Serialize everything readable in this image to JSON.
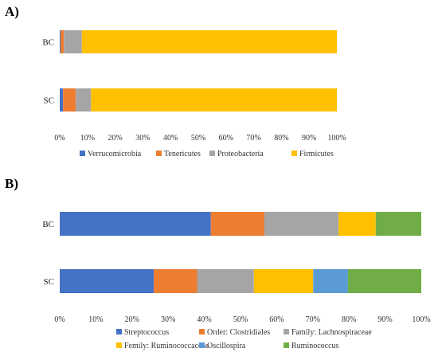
{
  "chart_data": [
    {
      "type": "bar",
      "orientation": "horizontal",
      "stacked": "percent",
      "panel_label": "A)",
      "categories": [
        "BC",
        "SC"
      ],
      "series": [
        {
          "name": "Verrucomicrobia",
          "color": "#4472C4",
          "values": [
            0.3,
            1.2
          ]
        },
        {
          "name": "Tenericutes",
          "color": "#ED7D31",
          "values": [
            1.2,
            4.6
          ]
        },
        {
          "name": "Proteobacteria",
          "color": "#A5A5A5",
          "values": [
            6.5,
            5.5
          ]
        },
        {
          "name": "Firmicutes",
          "color": "#FFC000",
          "values": [
            92.0,
            88.7
          ]
        }
      ],
      "xlim": [
        0,
        100
      ],
      "xticks": [
        "0%",
        "10%",
        "20%",
        "30%",
        "40%",
        "50%",
        "60%",
        "70%",
        "80%",
        "90%",
        "100%"
      ],
      "legend_position": "bottom",
      "grid": false
    },
    {
      "type": "bar",
      "orientation": "horizontal",
      "stacked": "percent",
      "panel_label": "B)",
      "categories": [
        "BC",
        "SC"
      ],
      "series": [
        {
          "name": "Streptococcus",
          "color": "#4472C4",
          "values": [
            41.8,
            26.0
          ]
        },
        {
          "name": "Order: Clostridiales",
          "color": "#ED7D31",
          "values": [
            14.8,
            12.0
          ]
        },
        {
          "name": "Family: Lachnospiraceae",
          "color": "#A5A5A5",
          "values": [
            20.5,
            15.7
          ]
        },
        {
          "name": "Femily: Ruminococcaceae",
          "color": "#FFC000",
          "values": [
            10.3,
            16.4
          ]
        },
        {
          "name": "Oscillospira",
          "color": "#5B9BD5",
          "values": [
            0.0,
            9.6
          ]
        },
        {
          "name": "Ruminococcus",
          "color": "#70AD47",
          "values": [
            12.6,
            20.3
          ]
        }
      ],
      "xlim": [
        0,
        100
      ],
      "xticks": [
        "0%",
        "10%",
        "20%",
        "30%",
        "40%",
        "50%",
        "60%",
        "70%",
        "80%",
        "90%",
        "100%"
      ],
      "legend_position": "bottom",
      "grid": false
    }
  ]
}
